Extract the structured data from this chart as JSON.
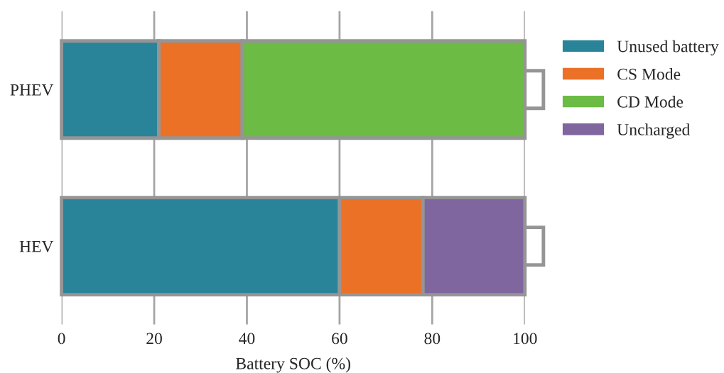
{
  "chart_data": {
    "type": "bar",
    "orientation": "horizontal",
    "stacked": true,
    "xlabel": "Battery SOC (%)",
    "categories": [
      "PHEV",
      "HEV"
    ],
    "series": [
      {
        "name": "Unused battery",
        "color": "#2a8499",
        "values": [
          21,
          60
        ]
      },
      {
        "name": "CS Mode",
        "color": "#eb7127",
        "values": [
          18,
          18
        ]
      },
      {
        "name": "CD Mode",
        "color": "#6bbb45",
        "values": [
          61,
          null
        ]
      },
      {
        "name": "Uncharged",
        "color": "#7f669e",
        "values": [
          null,
          22
        ]
      }
    ],
    "xlim": [
      0,
      100
    ],
    "xticks": [
      0,
      20,
      40,
      60,
      80,
      100
    ],
    "grid": "x",
    "legend": "right"
  }
}
